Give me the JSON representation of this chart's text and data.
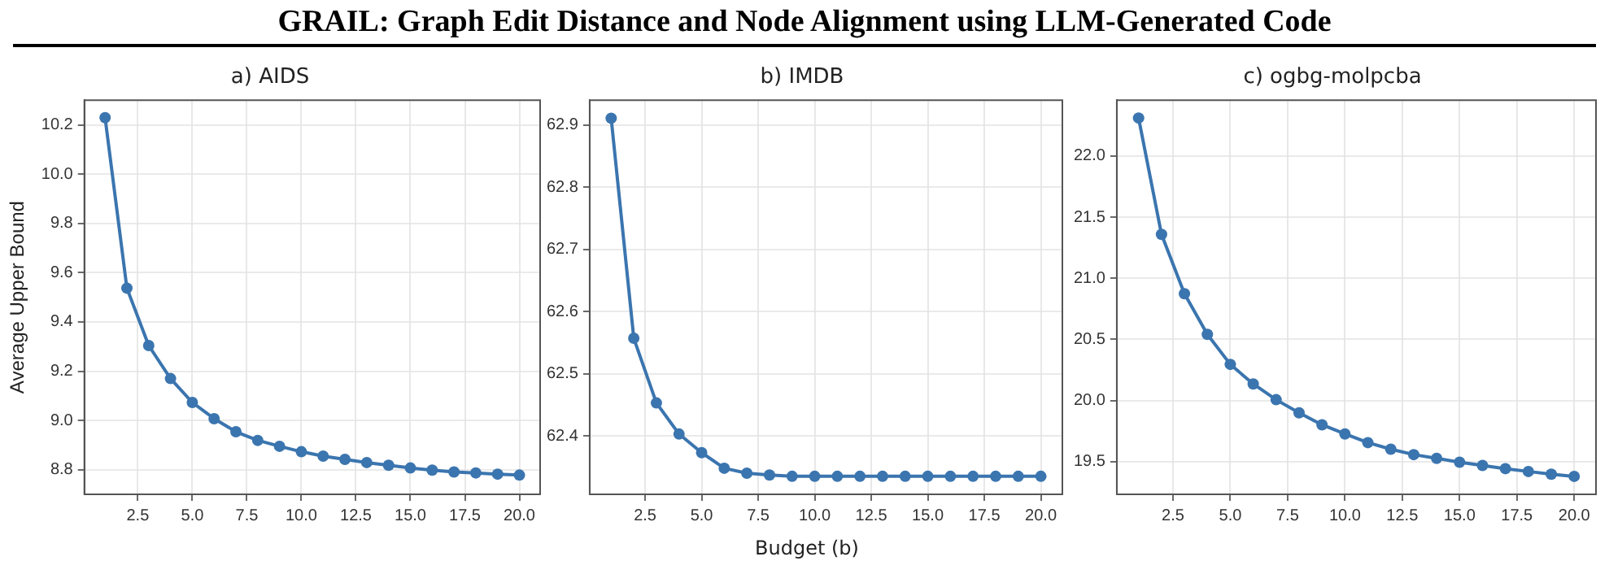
{
  "chart_data": [
    {
      "type": "line",
      "title": "a) AIDS",
      "ylabel": "Average Upper Bound",
      "annotations": [
        "GRAIL: Graph Edit Distance and Node Alignment using LLM-Generated Code"
      ],
      "x": [
        1,
        2,
        3,
        4,
        5,
        6,
        7,
        8,
        9,
        10,
        11,
        12,
        13,
        14,
        15,
        16,
        17,
        18,
        19,
        20
      ],
      "series": [
        {
          "color": "#3b75af",
          "values": [
            10.229,
            9.537,
            9.304,
            9.17,
            9.073,
            9.007,
            8.954,
            8.919,
            8.895,
            8.873,
            8.855,
            8.842,
            8.829,
            8.818,
            8.807,
            8.798,
            8.791,
            8.787,
            8.782,
            8.778
          ]
        }
      ],
      "xlim": [
        0.05,
        20.95
      ],
      "xticks": [
        2.5,
        {
          "value": 5,
          "label": "5.0"
        },
        7.5,
        {
          "value": 10,
          "label": "10.0"
        },
        12.5,
        {
          "value": 15,
          "label": "15.0"
        },
        17.5,
        {
          "value": 20,
          "label": "20.0"
        }
      ],
      "ylim": [
        8.7,
        10.3
      ],
      "yticks": [
        8.8,
        {
          "value": 9,
          "label": "9.0"
        },
        9.2,
        9.4,
        9.6,
        9.8,
        {
          "value": 10,
          "label": "10.0"
        },
        10.2
      ],
      "grid": true,
      "marker": "circle",
      "line_style": "solid"
    },
    {
      "type": "line",
      "title": "b) IMDB",
      "xlabel": "Budget (b)",
      "x": [
        1,
        2,
        3,
        4,
        5,
        6,
        7,
        8,
        9,
        10,
        11,
        12,
        13,
        14,
        15,
        16,
        17,
        18,
        19,
        20
      ],
      "series": [
        {
          "color": "#3b75af",
          "values": [
            62.911,
            62.557,
            62.453,
            62.403,
            62.373,
            62.348,
            62.34,
            62.337,
            62.335,
            62.335,
            62.335,
            62.335,
            62.335,
            62.335,
            62.335,
            62.335,
            62.335,
            62.335,
            62.335,
            62.335
          ]
        }
      ],
      "xlim": [
        0.05,
        20.95
      ],
      "xticks": [
        2.5,
        {
          "value": 5,
          "label": "5.0"
        },
        7.5,
        {
          "value": 10,
          "label": "10.0"
        },
        12.5,
        {
          "value": 15,
          "label": "15.0"
        },
        17.5,
        {
          "value": 20,
          "label": "20.0"
        }
      ],
      "ylim": [
        62.306,
        62.94
      ],
      "yticks": [
        62.4,
        62.5,
        62.6,
        62.7,
        62.8,
        62.9
      ],
      "grid": true,
      "marker": "circle",
      "line_style": "solid"
    },
    {
      "type": "line",
      "title": "c) ogbg-molpcba",
      "x": [
        1,
        2,
        3,
        4,
        5,
        6,
        7,
        8,
        9,
        10,
        11,
        12,
        13,
        14,
        15,
        16,
        17,
        18,
        19,
        20
      ],
      "series": [
        {
          "color": "#3b75af",
          "values": [
            22.311,
            21.359,
            20.874,
            20.541,
            20.296,
            20.136,
            20.007,
            19.9,
            19.802,
            19.727,
            19.656,
            19.602,
            19.558,
            19.527,
            19.496,
            19.469,
            19.443,
            19.42,
            19.398,
            19.38
          ]
        }
      ],
      "xlim": [
        0.05,
        20.95
      ],
      "xticks": [
        2.5,
        {
          "value": 5,
          "label": "5.0"
        },
        7.5,
        {
          "value": 10,
          "label": "10.0"
        },
        12.5,
        {
          "value": 15,
          "label": "15.0"
        },
        17.5,
        {
          "value": 20,
          "label": "20.0"
        }
      ],
      "ylim": [
        19.233,
        22.457
      ],
      "yticks": [
        19.5,
        {
          "value": 20,
          "label": "20.0"
        },
        20.5,
        {
          "value": 21,
          "label": "21.0"
        },
        21.5,
        {
          "value": 22,
          "label": "22.0"
        }
      ],
      "grid": true,
      "marker": "circle",
      "line_style": "solid"
    }
  ]
}
